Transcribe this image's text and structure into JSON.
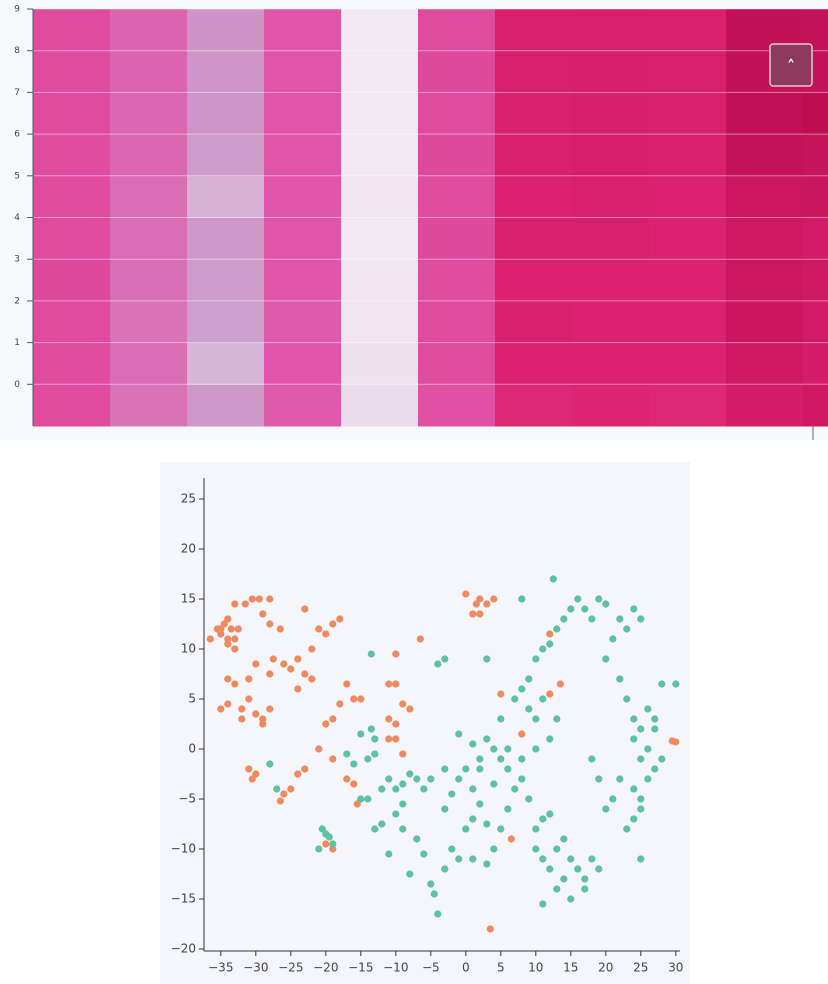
{
  "chart_data": [
    {
      "type": "heatmap",
      "ylim": [
        -1,
        9
      ],
      "yticks": [
        0,
        1,
        2,
        3,
        4,
        5,
        6,
        7,
        8,
        9
      ],
      "grid": true,
      "colorscale": [
        [
          0,
          "#f5eff6"
        ],
        [
          0.25,
          "#cc9fcc"
        ],
        [
          0.5,
          "#e055a8"
        ],
        [
          0.75,
          "#dc2270"
        ],
        [
          1,
          "#b80a4c"
        ]
      ],
      "z": [
        [
          0.55,
          0.4,
          0.27,
          0.48,
          0.06,
          0.52,
          0.72,
          0.74,
          0.72,
          0.8,
          0.85
        ],
        [
          0.55,
          0.42,
          0.18,
          0.5,
          0.04,
          0.55,
          0.76,
          0.76,
          0.75,
          0.84,
          0.8
        ],
        [
          0.55,
          0.4,
          0.25,
          0.48,
          0.03,
          0.55,
          0.77,
          0.76,
          0.76,
          0.87,
          0.82
        ],
        [
          0.56,
          0.41,
          0.26,
          0.5,
          0.03,
          0.54,
          0.76,
          0.76,
          0.75,
          0.86,
          0.84
        ],
        [
          0.55,
          0.42,
          0.27,
          0.5,
          0.02,
          0.56,
          0.77,
          0.78,
          0.76,
          0.85,
          0.82
        ],
        [
          0.55,
          0.42,
          0.19,
          0.5,
          0.03,
          0.55,
          0.76,
          0.77,
          0.76,
          0.86,
          0.88
        ],
        [
          0.54,
          0.44,
          0.26,
          0.5,
          0.02,
          0.56,
          0.77,
          0.79,
          0.77,
          0.92,
          0.9
        ],
        [
          0.55,
          0.44,
          0.28,
          0.5,
          0.02,
          0.55,
          0.77,
          0.79,
          0.77,
          0.94,
          0.96
        ],
        [
          0.55,
          0.45,
          0.28,
          0.5,
          0.02,
          0.56,
          0.78,
          0.79,
          0.78,
          0.93,
          0.92
        ],
        [
          0.55,
          0.45,
          0.29,
          0.5,
          0.02,
          0.55,
          0.77,
          0.78,
          0.77,
          0.93,
          0.92
        ]
      ]
    },
    {
      "type": "scatter",
      "xlim": [
        -37.4,
        30.6
      ],
      "ylim": [
        -20.2,
        27.1
      ],
      "xticks": [
        {
          "value": -35,
          "label": "−35"
        },
        {
          "value": -30,
          "label": "−30"
        },
        {
          "value": -25,
          "label": "−25"
        },
        {
          "value": -20,
          "label": "−20"
        },
        {
          "value": -15,
          "label": "−15"
        },
        {
          "value": -10,
          "label": "−10"
        },
        {
          "value": -5,
          "label": "−5"
        },
        0,
        5,
        10,
        15,
        20,
        25,
        30
      ],
      "yticks": [
        {
          "value": -20,
          "label": "−20"
        },
        {
          "value": -15,
          "label": "−15"
        },
        {
          "value": -10,
          "label": "−10"
        },
        {
          "value": -5,
          "label": "−5"
        },
        0,
        5,
        10,
        15,
        20,
        25
      ],
      "series": [
        {
          "color": "#ef8a5f",
          "x": [
            -36.5,
            -35.5,
            -35,
            -34.5,
            -34,
            -34,
            -33.5,
            -33,
            -33,
            -32.5,
            -34,
            -35,
            -33,
            -31.5,
            -30.5,
            -29.5,
            -28,
            -29,
            -28,
            -26.5,
            -34,
            -33,
            -35,
            -34,
            -32,
            -31,
            -32,
            -30,
            -29,
            -28,
            -29,
            -31,
            -30,
            -28,
            -27.5,
            -26,
            -25,
            -24,
            -23,
            -24,
            -22,
            -21,
            -20,
            -19,
            -18,
            -23,
            -22,
            -20,
            -19,
            -17,
            -16,
            -15,
            -18,
            -21,
            -19,
            -17,
            -15.5,
            -16,
            -24,
            -23,
            -26,
            -25,
            -26.5,
            -31,
            -30.5,
            -30,
            -20,
            -19,
            -11,
            -10,
            -11,
            -10,
            -9,
            -8,
            -10,
            -11,
            -9,
            -10,
            -6.5,
            0,
            1.5,
            2,
            3,
            4,
            1,
            2,
            5,
            8,
            12,
            13.5,
            12,
            6.5,
            3.5,
            29.5,
            30
          ],
          "y": [
            11,
            12,
            11.5,
            12.5,
            11,
            13,
            12,
            11,
            10,
            12,
            10.5,
            12,
            14.5,
            14.5,
            15,
            15,
            15,
            13.5,
            12.5,
            12,
            7,
            6.5,
            4,
            4.5,
            4,
            5,
            3,
            3.5,
            3,
            4,
            2.5,
            7,
            8.5,
            7.5,
            9,
            8.5,
            8,
            9,
            7.5,
            6,
            7,
            12,
            11.5,
            12.5,
            13,
            14,
            10,
            2.5,
            3,
            6.5,
            5,
            5,
            4.5,
            0,
            -1,
            -3,
            -5.5,
            -3.5,
            -2.5,
            -2,
            -4.5,
            -4,
            -5.2,
            -2,
            -3,
            -2.5,
            -9.5,
            -10,
            6.5,
            6.5,
            3,
            2.5,
            4.5,
            4,
            1,
            1,
            -0.5,
            9.5,
            11,
            15.5,
            14.5,
            15,
            14.5,
            15,
            13.5,
            13.5,
            5.5,
            1.5,
            11.5,
            6.5,
            5.5,
            -9,
            -18,
            0.8,
            0.7
          ]
        },
        {
          "color": "#5cc2a0",
          "x": [
            -28,
            -27,
            -20.5,
            -20,
            -21,
            -19.5,
            -19,
            -17,
            -16,
            -14,
            -13,
            -15,
            -13.5,
            -13,
            -13.5,
            -12,
            -11,
            -10,
            -9,
            -8,
            -7,
            -6,
            -9,
            -10,
            -12,
            -14,
            -15,
            -13,
            -11,
            -9,
            -7,
            -6,
            -8,
            -5,
            -4.5,
            -4,
            -3,
            -2,
            -1,
            -3,
            -2,
            -1,
            0,
            1,
            2,
            0,
            1,
            3,
            4,
            3,
            1,
            5,
            6,
            7,
            8,
            9,
            10,
            11,
            12,
            10,
            11,
            12,
            13,
            14,
            15,
            16,
            17,
            18,
            19,
            17,
            15,
            13,
            11,
            14,
            20,
            21,
            19,
            18,
            22,
            24,
            25,
            26,
            25,
            24,
            23,
            25,
            24,
            26,
            27,
            25,
            24,
            26,
            27,
            28,
            23,
            22,
            20,
            21,
            22,
            23,
            24,
            25,
            20,
            19,
            18,
            17,
            16,
            15,
            14,
            13,
            12,
            11,
            10,
            9,
            8,
            7,
            9,
            10,
            11,
            13,
            12,
            10,
            8,
            6,
            5,
            4,
            3,
            2,
            1,
            -1,
            -3,
            -5,
            5,
            8,
            12.5,
            -3,
            -4,
            3,
            28,
            27,
            25,
            30,
            2,
            4,
            6
          ],
          "y": [
            -1.5,
            -4,
            -8,
            -8.5,
            -10,
            -8.8,
            -9.5,
            -0.5,
            -1.5,
            -1,
            -0.5,
            1.5,
            2,
            1,
            9.5,
            -4,
            -3,
            -4,
            -3.5,
            -2.5,
            -3,
            -4,
            -5.5,
            -6.5,
            -7.5,
            -5,
            -5,
            -8,
            -10.5,
            -8,
            -9,
            -10.5,
            -12.5,
            -13.5,
            -14.5,
            -16.5,
            -12,
            -10,
            -11,
            -6,
            -4.5,
            -3,
            -2,
            -4,
            -5.5,
            -8,
            -7,
            -7.5,
            -10,
            -11.5,
            -11,
            -8,
            -6,
            -4,
            -3,
            -5,
            -8,
            -7,
            -6.5,
            -10,
            -11,
            -12,
            -10,
            -9,
            -11,
            -12,
            -13,
            -11,
            -12,
            -14,
            -15,
            -14,
            -15.5,
            -13,
            -6,
            -5,
            -3,
            -1,
            -3,
            -4,
            -5,
            -3,
            -6,
            -7,
            -8,
            -1,
            1,
            0,
            -2,
            2,
            3,
            4,
            2,
            -1,
            5,
            7,
            9,
            11,
            13,
            12,
            14,
            13,
            14.5,
            15,
            13,
            14,
            15,
            14,
            13,
            12,
            10.5,
            10,
            9,
            7,
            6,
            5,
            4,
            3,
            5,
            3,
            1,
            0,
            -1,
            0,
            -1,
            0,
            1,
            -1,
            0.5,
            1.5,
            -2,
            -3,
            3,
            15,
            17,
            9,
            8.5,
            9,
            6.5,
            3,
            -11,
            6.5,
            -2,
            -3.5,
            -2
          ]
        }
      ]
    }
  ],
  "ui": {
    "scroll_button": "˄"
  }
}
